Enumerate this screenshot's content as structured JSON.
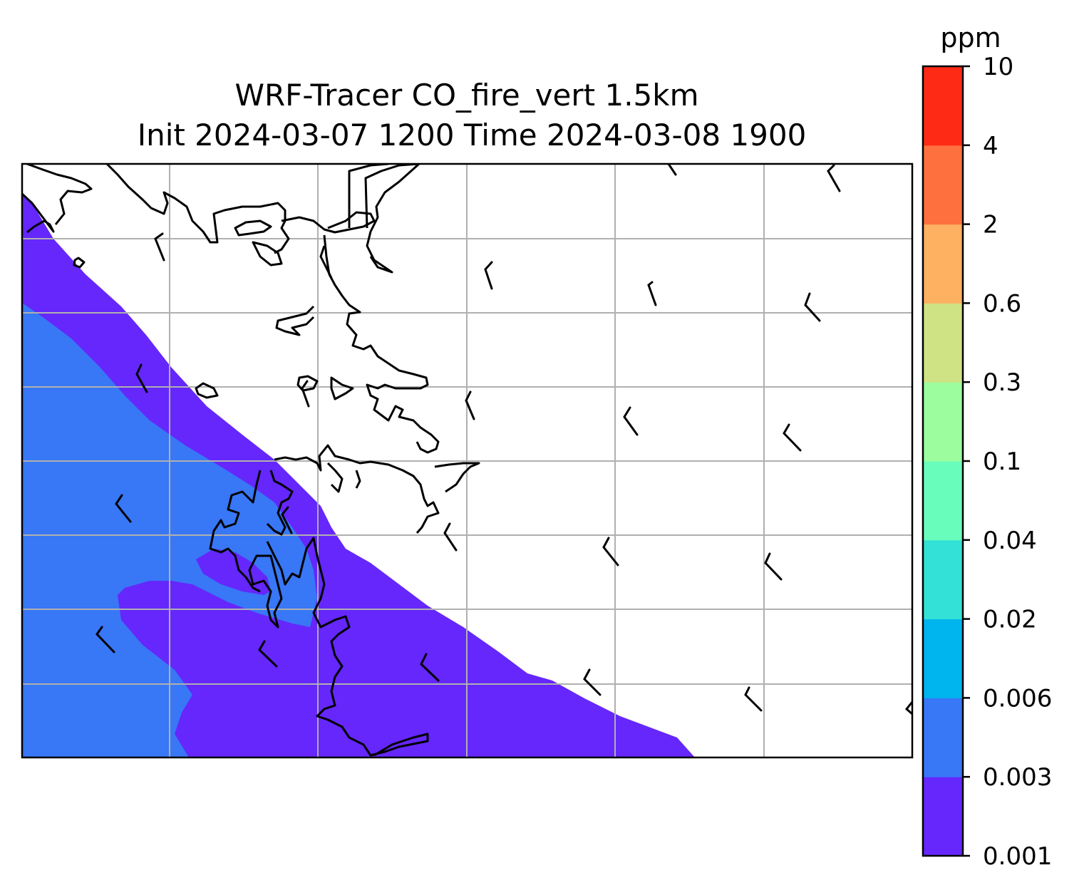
{
  "title": {
    "line1": "WRF-Tracer CO_fire_vert 1.5km",
    "line2": "Init 2024-03-07 1200 Time 2024-03-08 1900"
  },
  "colorbar": {
    "unit": "ppm",
    "levels": [
      "0.001",
      "0.003",
      "0.006",
      "0.02",
      "0.04",
      "0.1",
      "0.3",
      "0.6",
      "2",
      "4",
      "10"
    ],
    "colors": [
      "#6527fc",
      "#3877f5",
      "#00b5ee",
      "#33e1d6",
      "#69fdbc",
      "#9cfd9f",
      "#cfe385",
      "#feb161",
      "#fe703d",
      "#ff2a16"
    ]
  },
  "map": {
    "fill_colors": {
      "lowest": "#6527fc",
      "low": "#3877f5",
      "grid": "#b0b0b0",
      "coast": "#000000"
    }
  }
}
